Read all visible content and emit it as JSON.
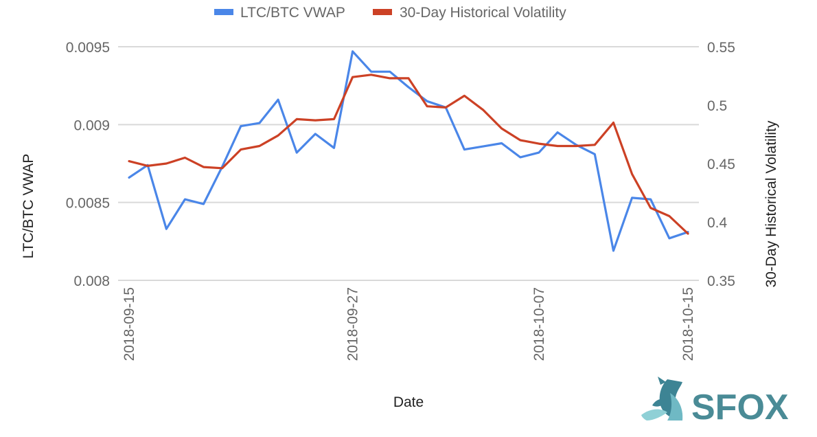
{
  "chart_data": {
    "type": "line",
    "xlabel": "Date",
    "ylabel_left": "LTC/BTC VWAP",
    "ylabel_right": "30-Day Historical Volatility",
    "x_start": "2018-09-15",
    "x_end": "2018-10-15",
    "x_ticks": [
      "2018-09-15",
      "2018-09-27",
      "2018-10-07",
      "2018-10-15"
    ],
    "left_axis": {
      "range": [
        0.008,
        0.0095
      ],
      "ticks": [
        "0.0095",
        "0.009",
        "0.0085",
        "0.008"
      ],
      "tick_values": [
        0.0095,
        0.009,
        0.0085,
        0.008
      ]
    },
    "right_axis": {
      "range": [
        0.35,
        0.55
      ],
      "ticks": [
        "0.55",
        "0.5",
        "0.45",
        "0.4",
        "0.35"
      ],
      "tick_values": [
        0.55,
        0.5,
        0.45,
        0.4,
        0.35
      ]
    },
    "grid": true,
    "legend_position": "top",
    "series": [
      {
        "name": "LTC/BTC VWAP",
        "axis": "left",
        "color": "#4a86e8",
        "x": [
          "2018-09-15",
          "2018-09-16",
          "2018-09-17",
          "2018-09-18",
          "2018-09-19",
          "2018-09-20",
          "2018-09-21",
          "2018-09-22",
          "2018-09-23",
          "2018-09-24",
          "2018-09-25",
          "2018-09-26",
          "2018-09-27",
          "2018-09-28",
          "2018-09-29",
          "2018-09-30",
          "2018-10-01",
          "2018-10-02",
          "2018-10-03",
          "2018-10-04",
          "2018-10-05",
          "2018-10-06",
          "2018-10-07",
          "2018-10-08",
          "2018-10-09",
          "2018-10-10",
          "2018-10-11",
          "2018-10-12",
          "2018-10-13",
          "2018-10-14",
          "2018-10-15"
        ],
        "values": [
          0.00866,
          0.00874,
          0.00833,
          0.00852,
          0.00849,
          0.00873,
          0.00899,
          0.00901,
          0.00916,
          0.00882,
          0.00894,
          0.00885,
          0.00947,
          0.00934,
          0.00934,
          0.00924,
          0.00915,
          0.00911,
          0.00884,
          0.00886,
          0.00888,
          0.00879,
          0.00882,
          0.00895,
          0.00887,
          0.00881,
          0.00819,
          0.00853,
          0.00852,
          0.00827,
          0.00831
        ]
      },
      {
        "name": "30-Day Historical Volatility",
        "axis": "right",
        "color": "#cc4125",
        "x": [
          "2018-09-15",
          "2018-09-16",
          "2018-09-17",
          "2018-09-18",
          "2018-09-19",
          "2018-09-20",
          "2018-09-21",
          "2018-09-22",
          "2018-09-23",
          "2018-09-24",
          "2018-09-25",
          "2018-09-26",
          "2018-09-27",
          "2018-09-28",
          "2018-09-29",
          "2018-09-30",
          "2018-10-01",
          "2018-10-02",
          "2018-10-03",
          "2018-10-04",
          "2018-10-05",
          "2018-10-06",
          "2018-10-07",
          "2018-10-08",
          "2018-10-09",
          "2018-10-10",
          "2018-10-11",
          "2018-10-12",
          "2018-10-13",
          "2018-10-14",
          "2018-10-15"
        ],
        "values": [
          0.452,
          0.448,
          0.45,
          0.455,
          0.447,
          0.446,
          0.462,
          0.465,
          0.474,
          0.488,
          0.487,
          0.488,
          0.524,
          0.526,
          0.523,
          0.523,
          0.499,
          0.498,
          0.508,
          0.496,
          0.48,
          0.47,
          0.467,
          0.465,
          0.465,
          0.466,
          0.485,
          0.441,
          0.412,
          0.405,
          0.39
        ]
      }
    ]
  },
  "logo": {
    "text": "SFOX",
    "color": "#4a8b96"
  }
}
